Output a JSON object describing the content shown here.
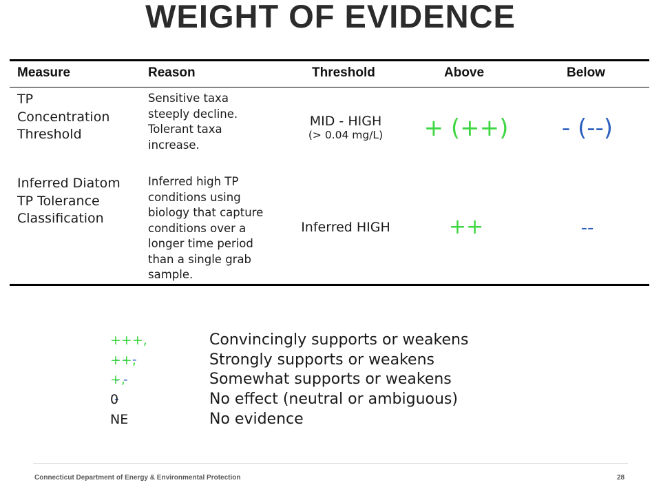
{
  "title": "WEIGHT OF EVIDENCE",
  "table": {
    "headers": {
      "measure": "Measure",
      "reason": "Reason",
      "threshold": "Threshold",
      "above": "Above",
      "below": "Below"
    },
    "rows": [
      {
        "measure": [
          "TP",
          "Concentration",
          "Threshold"
        ],
        "reason": [
          "Sensitive taxa",
          "steeply decline.",
          "Tolerant taxa",
          "increase."
        ],
        "threshold_main": "MID - HIGH",
        "threshold_sub": "(> 0.04 mg/L)",
        "above": "+ (++)",
        "below": "- (--)"
      },
      {
        "measure": [
          "Inferred Diatom",
          "TP Tolerance",
          "Classification"
        ],
        "reason": [
          "Inferred high TP",
          "conditions using",
          "biology that capture",
          "conditions over a",
          "longer time period",
          "than a single grab",
          "sample."
        ],
        "threshold_main": "Inferred HIGH",
        "above": "++",
        "below": "--"
      }
    ]
  },
  "legend": [
    {
      "code_plus": "+++,",
      "code_minus": " - - -",
      "description": "Convincingly supports or weakens"
    },
    {
      "code_plus": "++,",
      "code_minus": " - -",
      "description": "Strongly supports or weakens"
    },
    {
      "code_plus": "+,",
      "code_minus": " -",
      "description": "Somewhat supports or weakens"
    },
    {
      "code": "0",
      "description": "No effect (neutral or ambiguous)"
    },
    {
      "code": "NE",
      "description": "No evidence"
    }
  ],
  "footer": {
    "organization": "Connecticut Department of Energy & Environmental Protection",
    "page_number": "28"
  },
  "colors": {
    "support": "#3ed642",
    "weaken": "#2d60bf"
  }
}
